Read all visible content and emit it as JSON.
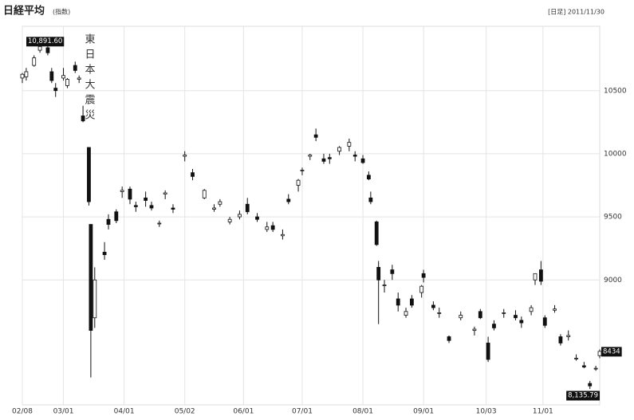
{
  "chart_data": {
    "type": "candlestick",
    "title": "日経平均",
    "subtitle": "(指数)",
    "header_right": "[日足] 2011/11/30",
    "annotation": "東日本大震災",
    "up_color": "#ffffff",
    "down_color": "#111111",
    "grid": true,
    "ylim": [
      8010,
      11010
    ],
    "yticks": [
      9000,
      9500,
      10000,
      10500
    ],
    "xticks": [
      "02/08",
      "03/01",
      "04/01",
      "05/02",
      "06/01",
      "07/01",
      "08/01",
      "09/01",
      "10/03",
      "11/01"
    ],
    "high_label": {
      "value": 10891.6,
      "label": "10,891.60"
    },
    "low_label": {
      "value": 8135.79,
      "label": "8,135.79"
    },
    "last_label": {
      "value": 8434,
      "label": "8434"
    },
    "categories": [
      "02/08",
      "02/10",
      "02/14",
      "02/17",
      "02/21",
      "02/23",
      "02/25",
      "03/01",
      "03/03",
      "03/07",
      "03/09",
      "03/11",
      "03/14",
      "03/15",
      "03/17",
      "03/22",
      "03/24",
      "03/28",
      "03/31",
      "04/04",
      "04/07",
      "04/12",
      "04/15",
      "04/19",
      "04/22",
      "04/26",
      "05/02",
      "05/06",
      "05/12",
      "05/17",
      "05/20",
      "05/25",
      "05/30",
      "06/03",
      "06/08",
      "06/13",
      "06/16",
      "06/21",
      "06/24",
      "06/29",
      "07/01",
      "07/05",
      "07/08",
      "07/12",
      "07/15",
      "07/20",
      "07/25",
      "07/28",
      "08/01",
      "08/04",
      "08/05",
      "08/08",
      "08/09",
      "08/12",
      "08/16",
      "08/19",
      "08/23",
      "08/26",
      "08/31",
      "09/01",
      "09/06",
      "09/09",
      "09/14",
      "09/20",
      "09/27",
      "09/30",
      "10/04",
      "10/07",
      "10/12",
      "10/18",
      "10/21",
      "10/26",
      "10/28",
      "10/31",
      "11/02",
      "11/07",
      "11/10",
      "11/14",
      "11/18",
      "11/22",
      "11/25",
      "11/28",
      "11/30"
    ],
    "open": [
      10600,
      10610,
      10700,
      10820,
      10840,
      10650,
      10520,
      10600,
      10540,
      10700,
      10590,
      10300,
      10050,
      9440,
      8700,
      9220,
      9480,
      9540,
      9700,
      9720,
      9590,
      9650,
      9590,
      9450,
      9680,
      9570,
      9980,
      9850,
      9650,
      9560,
      9600,
      9460,
      9500,
      9600,
      9500,
      9400,
      9430,
      9350,
      9640,
      9750,
      9870,
      9980,
      10150,
      9960,
      9970,
      10020,
      10060,
      9990,
      9960,
      9830,
      9650,
      9460,
      9100,
      8960,
      9080,
      8850,
      8720,
      8850,
      8900,
      9050,
      8800,
      8740,
      8550,
      8700,
      8600,
      8750,
      8500,
      8650,
      8740,
      8720,
      8680,
      8750,
      9000,
      9080,
      8700,
      8760,
      8550,
      8550,
      8380,
      8320,
      8180,
      8300,
      8400
    ],
    "high": [
      10640,
      10680,
      10780,
      10891.6,
      10860,
      10680,
      10560,
      10680,
      10600,
      10730,
      10620,
      10380,
      10050,
      9440,
      9100,
      9300,
      9520,
      9560,
      9740,
      9740,
      9620,
      9700,
      9620,
      9470,
      9710,
      9600,
      10020,
      9880,
      9720,
      9600,
      9640,
      9500,
      9550,
      9650,
      9530,
      9460,
      9460,
      9400,
      9680,
      9800,
      9890,
      10000,
      10200,
      10000,
      10000,
      10060,
      10120,
      10020,
      9990,
      9860,
      9700,
      9470,
      9150,
      9000,
      9120,
      8900,
      8780,
      8880,
      8960,
      9080,
      8830,
      8780,
      8560,
      8750,
      8630,
      8770,
      8550,
      8680,
      8770,
      8760,
      8710,
      8800,
      9050,
      9150,
      8720,
      8800,
      8570,
      8600,
      8410,
      8350,
      8200,
      8320,
      8450
    ],
    "low": [
      10560,
      10580,
      10690,
      10800,
      10780,
      10560,
      10450,
      10580,
      10520,
      10640,
      10560,
      10250,
      9590,
      8227,
      8620,
      9160,
      9400,
      9450,
      9650,
      9600,
      9540,
      9580,
      9550,
      9420,
      9640,
      9530,
      9940,
      9790,
      9640,
      9540,
      9580,
      9440,
      9480,
      9520,
      9460,
      9380,
      9380,
      9320,
      9600,
      9700,
      9830,
      9950,
      10100,
      9920,
      9920,
      9990,
      10020,
      9940,
      9920,
      9790,
      9600,
      9270,
      8650,
      8900,
      9000,
      8750,
      8700,
      8780,
      8860,
      8980,
      8760,
      8700,
      8500,
      8680,
      8560,
      8690,
      8350,
      8600,
      8700,
      8680,
      8620,
      8720,
      8960,
      8960,
      8620,
      8740,
      8480,
      8520,
      8360,
      8300,
      8135.79,
      8280,
      8380
    ],
    "close": [
      10630,
      10650,
      10760,
      10850,
      10800,
      10580,
      10500,
      10620,
      10590,
      10660,
      10600,
      10260,
      9620,
      8600,
      9000,
      9200,
      9440,
      9470,
      9710,
      9640,
      9580,
      9630,
      9570,
      9450,
      9690,
      9560,
      9990,
      9820,
      9710,
      9570,
      9620,
      9480,
      9520,
      9540,
      9480,
      9420,
      9400,
      9360,
      9620,
      9790,
      9870,
      9990,
      10130,
      9940,
      9960,
      10050,
      10090,
      9980,
      9930,
      9800,
      9620,
      9280,
      9000,
      8960,
      9050,
      8800,
      8750,
      8800,
      8950,
      9020,
      8780,
      8740,
      8520,
      8720,
      8610,
      8700,
      8370,
      8620,
      8740,
      8700,
      8660,
      8780,
      9050,
      8990,
      8640,
      8770,
      8500,
      8560,
      8380,
      8310,
      8160,
      8300,
      8434
    ]
  }
}
